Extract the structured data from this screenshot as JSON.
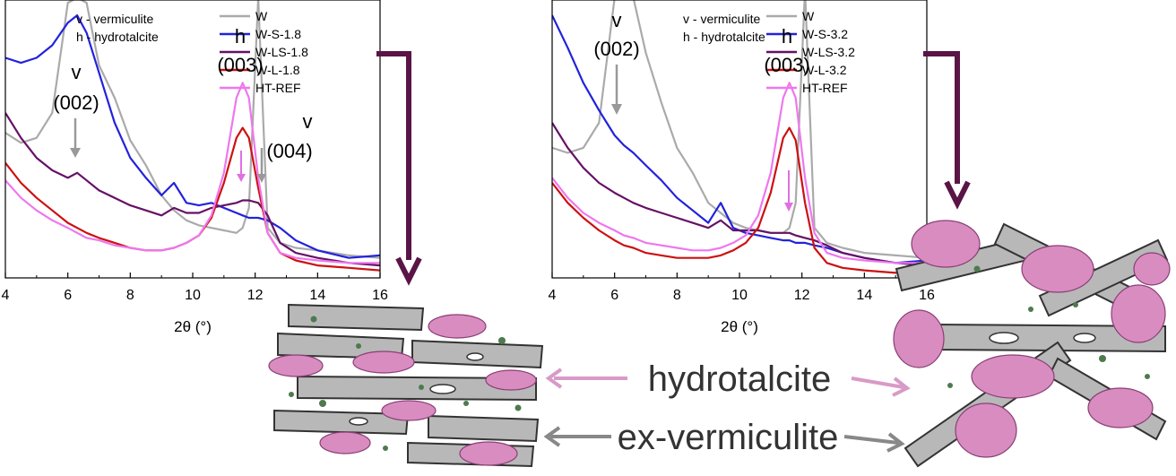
{
  "chart_data": [
    {
      "type": "line",
      "xlabel": "2θ (°)",
      "ylabel": "",
      "xlim": [
        4,
        16
      ],
      "xticks": [
        "4",
        "6",
        "8",
        "10",
        "12",
        "14",
        "16"
      ],
      "notes": [
        "v - vermiculite",
        "h - hydrotalcite"
      ],
      "annotations": [
        {
          "letter": "v",
          "hkl": "(002)",
          "x": 6.2
        },
        {
          "letter": "h",
          "hkl": "(003)",
          "x": 11.6
        },
        {
          "letter": "v",
          "hkl": "(004)",
          "x": 12.4
        }
      ],
      "x": [
        4,
        4.5,
        5,
        5.5,
        6,
        6.3,
        6.6,
        7,
        7.5,
        8,
        8.5,
        9,
        9.4,
        9.8,
        10.2,
        10.6,
        11,
        11.4,
        11.6,
        11.8,
        12.1,
        12.4,
        12.8,
        13.3,
        14,
        15,
        16
      ],
      "series": [
        {
          "name": "W",
          "color": "#aaaaaa",
          "values": [
            0.58,
            0.54,
            0.56,
            0.66,
            1.1,
            1.12,
            1.1,
            0.85,
            0.72,
            0.55,
            0.45,
            0.33,
            0.27,
            0.23,
            0.21,
            0.2,
            0.19,
            0.18,
            0.2,
            0.28,
            1.12,
            0.2,
            0.14,
            0.12,
            0.11,
            0.09,
            0.08
          ]
        },
        {
          "name": "W-S-1.8",
          "color": "#2222dd",
          "values": [
            0.88,
            0.86,
            0.88,
            0.93,
            1.02,
            1.05,
            0.98,
            0.82,
            0.62,
            0.48,
            0.4,
            0.33,
            0.38,
            0.3,
            0.29,
            0.3,
            0.28,
            0.26,
            0.25,
            0.24,
            0.24,
            0.23,
            0.2,
            0.15,
            0.11,
            0.08,
            0.09
          ]
        },
        {
          "name": "W-LS-1.8",
          "color": "#661166",
          "values": [
            0.66,
            0.56,
            0.48,
            0.43,
            0.4,
            0.42,
            0.39,
            0.35,
            0.32,
            0.29,
            0.27,
            0.25,
            0.28,
            0.26,
            0.26,
            0.28,
            0.29,
            0.3,
            0.31,
            0.31,
            0.3,
            0.25,
            0.14,
            0.1,
            0.08,
            0.06,
            0.05
          ]
        },
        {
          "name": "W-L-1.8",
          "color": "#cc1111",
          "values": [
            0.46,
            0.38,
            0.32,
            0.27,
            0.22,
            0.2,
            0.18,
            0.16,
            0.14,
            0.12,
            0.11,
            0.11,
            0.12,
            0.14,
            0.17,
            0.24,
            0.38,
            0.56,
            0.6,
            0.56,
            0.36,
            0.18,
            0.1,
            0.07,
            0.05,
            0.04,
            0.03
          ]
        },
        {
          "name": "HT-REF",
          "color": "#ee77ee",
          "values": [
            0.39,
            0.32,
            0.27,
            0.23,
            0.2,
            0.18,
            0.16,
            0.15,
            0.13,
            0.12,
            0.11,
            0.11,
            0.12,
            0.14,
            0.17,
            0.25,
            0.42,
            0.72,
            0.78,
            0.72,
            0.4,
            0.18,
            0.1,
            0.08,
            0.07,
            0.06,
            0.06
          ]
        }
      ]
    },
    {
      "type": "line",
      "xlabel": "2θ (°)",
      "ylabel": "",
      "xlim": [
        4,
        16
      ],
      "xticks": [
        "4",
        "6",
        "8",
        "10",
        "12",
        "14",
        "16"
      ],
      "notes": [
        "v - vermiculite",
        "h - hydrotalcite"
      ],
      "annotations": [
        {
          "letter": "v",
          "hkl": "(002)",
          "x": 6.1
        },
        {
          "letter": "h",
          "hkl": "(003)",
          "x": 11.6
        }
      ],
      "x": [
        4,
        4.5,
        5,
        5.5,
        6,
        6.3,
        6.6,
        7,
        7.5,
        8,
        8.5,
        9,
        9.4,
        9.8,
        10.2,
        10.6,
        11,
        11.4,
        11.6,
        11.8,
        12.1,
        12.4,
        12.8,
        13.3,
        14,
        15,
        16
      ],
      "series": [
        {
          "name": "W",
          "color": "#aaaaaa",
          "values": [
            0.52,
            0.5,
            0.52,
            0.62,
            1.12,
            1.15,
            1.12,
            0.9,
            0.7,
            0.52,
            0.42,
            0.3,
            0.26,
            0.22,
            0.2,
            0.19,
            0.18,
            0.18,
            0.2,
            0.3,
            1.15,
            0.2,
            0.14,
            0.12,
            0.1,
            0.09,
            0.08
          ]
        },
        {
          "name": "W-S-3.2",
          "color": "#2222dd",
          "values": [
            1.05,
            0.92,
            0.78,
            0.67,
            0.57,
            0.53,
            0.5,
            0.45,
            0.39,
            0.32,
            0.27,
            0.22,
            0.3,
            0.2,
            0.18,
            0.17,
            0.16,
            0.15,
            0.15,
            0.14,
            0.14,
            0.13,
            0.12,
            0.1,
            0.08,
            0.06,
            0.07
          ]
        },
        {
          "name": "W-LS-3.2",
          "color": "#661166",
          "values": [
            0.62,
            0.52,
            0.44,
            0.38,
            0.34,
            0.32,
            0.3,
            0.28,
            0.26,
            0.24,
            0.22,
            0.2,
            0.23,
            0.19,
            0.19,
            0.19,
            0.18,
            0.18,
            0.18,
            0.17,
            0.16,
            0.15,
            0.13,
            0.1,
            0.08,
            0.06,
            0.05
          ]
        },
        {
          "name": "W-L-3.2",
          "color": "#cc1111",
          "values": [
            0.38,
            0.3,
            0.24,
            0.19,
            0.15,
            0.13,
            0.12,
            0.1,
            0.09,
            0.08,
            0.08,
            0.08,
            0.09,
            0.11,
            0.14,
            0.2,
            0.34,
            0.56,
            0.6,
            0.55,
            0.3,
            0.12,
            0.06,
            0.04,
            0.03,
            0.02,
            0.02
          ]
        },
        {
          "name": "HT-REF",
          "color": "#ee77ee",
          "values": [
            0.4,
            0.32,
            0.26,
            0.22,
            0.19,
            0.17,
            0.16,
            0.14,
            0.13,
            0.12,
            0.11,
            0.11,
            0.12,
            0.14,
            0.17,
            0.25,
            0.42,
            0.72,
            0.78,
            0.72,
            0.4,
            0.18,
            0.1,
            0.08,
            0.07,
            0.06,
            0.06
          ]
        }
      ]
    }
  ],
  "schematic": {
    "hydrotalcite_label": "hydrotalcite",
    "vermiculite_label": "ex-vermiculite",
    "hydrotalcite_color": "#d88cc0",
    "vermiculite_color": "#b4b4b4",
    "arrow_color": "#5a1446"
  }
}
